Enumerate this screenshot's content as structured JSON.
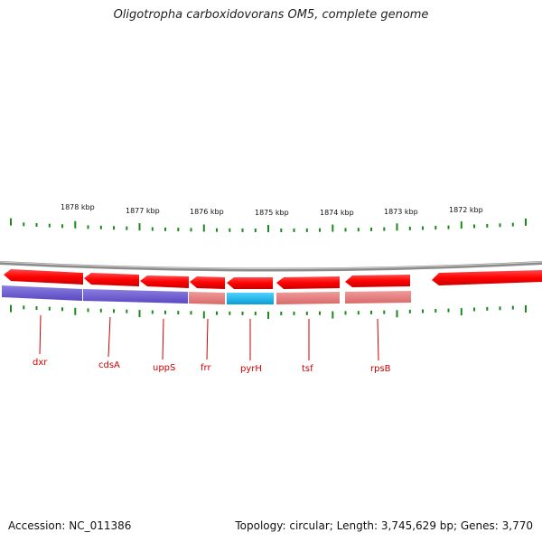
{
  "title": "Oligotropha carboxidovorans OM5, complete genome",
  "footer": {
    "accession": "Accession: NC_011386",
    "topology": "Topology: circular; Length: 3,745,629 bp; Genes: 3,770"
  },
  "colors": {
    "cds_strand": "#ff1a1a",
    "backbone": "#8c8c8c",
    "tick": "#1a8a1a",
    "label": "#cc0000",
    "feature_purple": "#6655cc",
    "feature_pink": "#e57a7a",
    "feature_cyan": "#19b6e8"
  },
  "coordinate_labels": [
    "1878 kbp",
    "1877 kbp",
    "1876 kbp",
    "1875 kbp",
    "1874 kbp",
    "1873 kbp",
    "1872 kbp"
  ],
  "genes": [
    "dxr",
    "cdsA",
    "uppS",
    "frr",
    "pyrH",
    "tsf",
    "rpsB"
  ]
}
